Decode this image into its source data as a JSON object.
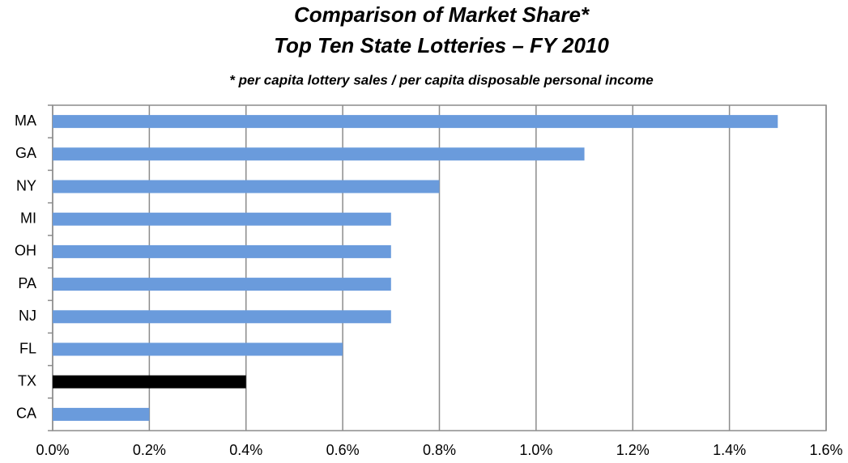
{
  "chart_data": {
    "type": "bar",
    "orientation": "horizontal",
    "title": [
      "Comparison of Market Share*",
      "Top Ten State Lotteries – FY 2010"
    ],
    "subtitle": "* per capita lottery sales / per capita disposable personal income",
    "categories": [
      "MA",
      "GA",
      "NY",
      "MI",
      "OH",
      "PA",
      "NJ",
      "FL",
      "TX",
      "CA"
    ],
    "values": [
      1.5,
      1.1,
      0.8,
      0.7,
      0.7,
      0.7,
      0.7,
      0.6,
      0.4,
      0.2
    ],
    "colors": [
      "#6a9bdc",
      "#6a9bdc",
      "#6a9bdc",
      "#6a9bdc",
      "#6a9bdc",
      "#6a9bdc",
      "#6a9bdc",
      "#6a9bdc",
      "#000000",
      "#6a9bdc"
    ],
    "xlim": [
      0,
      1.6
    ],
    "xticks": [
      {
        "value": 0,
        "label": "0.0%"
      },
      {
        "value": 0.2,
        "label": "0.2%"
      },
      {
        "value": 0.4,
        "label": "0.4%"
      },
      {
        "value": 0.6,
        "label": "0.6%"
      },
      {
        "value": 0.8,
        "label": "0.8%"
      },
      {
        "value": 1.0,
        "label": "1.0%"
      },
      {
        "value": 1.2,
        "label": "1.2%"
      },
      {
        "value": 1.4,
        "label": "1.4%"
      },
      {
        "value": 1.6,
        "label": "1.6%"
      }
    ],
    "grid": true
  }
}
